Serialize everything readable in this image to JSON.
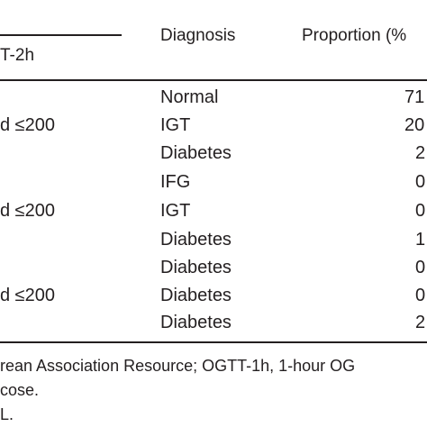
{
  "table": {
    "header": {
      "ogtt2h_fragment": "T-2h",
      "diagnosis": "Diagnosis",
      "proportion": "Proportion (%"
    },
    "rows": [
      {
        "criteria": "",
        "diagnosis": "Normal",
        "proportion": "71"
      },
      {
        "criteria": "d  ≤200",
        "diagnosis": "IGT",
        "proportion": "20"
      },
      {
        "criteria": "",
        "diagnosis": "Diabetes",
        "proportion": "2"
      },
      {
        "criteria": "",
        "diagnosis": "IFG",
        "proportion": "0"
      },
      {
        "criteria": "d  ≤200",
        "diagnosis": "IGT",
        "proportion": "0"
      },
      {
        "criteria": "",
        "diagnosis": "Diabetes",
        "proportion": "1"
      },
      {
        "criteria": "",
        "diagnosis": "Diabetes",
        "proportion": "0"
      },
      {
        "criteria": "d  ≤200",
        "diagnosis": "Diabetes",
        "proportion": "0"
      },
      {
        "criteria": "",
        "diagnosis": "Diabetes",
        "proportion": "2"
      }
    ]
  },
  "footnotes": {
    "line1": "rean Association Resource; OGTT-1h, 1-hour OG",
    "line2": "cose.",
    "line3": "L."
  }
}
